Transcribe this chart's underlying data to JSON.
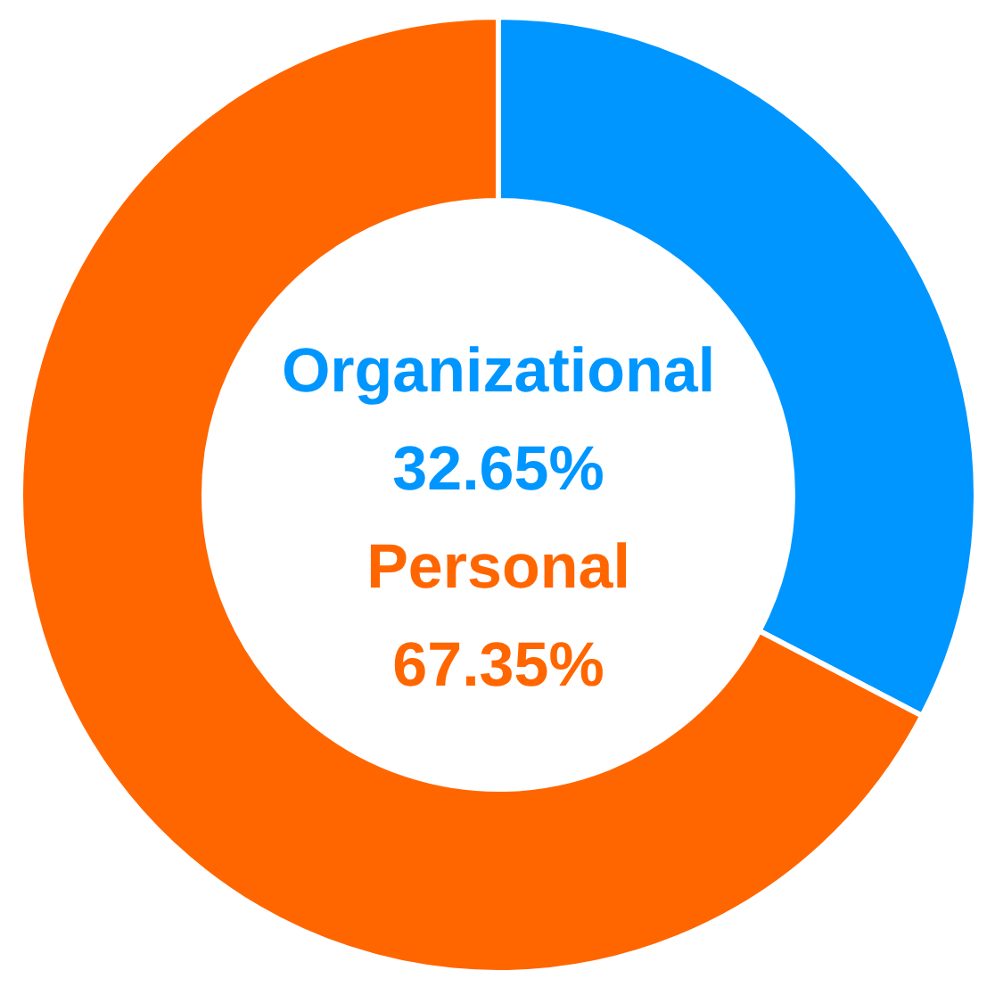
{
  "chart_data": {
    "type": "donut",
    "categories": [
      "Organizational",
      "Personal"
    ],
    "values": [
      32.65,
      67.35
    ],
    "colors": [
      "#0096ff",
      "#ff6600"
    ],
    "value_labels": [
      "32.65%",
      "67.35%"
    ]
  }
}
